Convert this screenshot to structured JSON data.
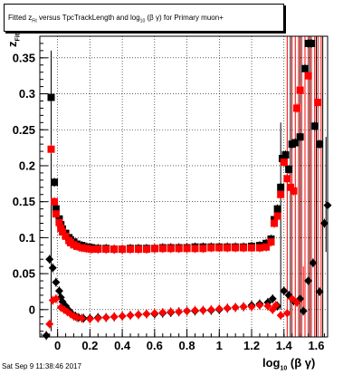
{
  "title": {
    "prefix": "Fitted",
    "z_main": "z",
    "z_sub": "Fit",
    "middle": "versus TpcTrackLength and log",
    "log_sub": "10",
    "suffix": "(β γ) for Primary muon+"
  },
  "ylabel": {
    "main": "z",
    "sub": "Fit"
  },
  "xlabel": {
    "main": "log",
    "sub": "10",
    "suffix": "(β γ)"
  },
  "datestamp": "Sat Sep  9 11:38:46 2017",
  "colors": {
    "black_series": "#000000",
    "red_series": "#ff0000"
  },
  "chart_data": {
    "type": "scatter",
    "xlim": [
      -0.11,
      1.67
    ],
    "ylim": [
      -0.038,
      0.38
    ],
    "x_ticks": [
      "0",
      "0.2",
      "0.4",
      "0.6",
      "0.8",
      "1",
      "1.2",
      "1.4",
      "1.6"
    ],
    "y_ticks": [
      "0",
      "0.05",
      "0.1",
      "0.15",
      "0.2",
      "0.25",
      "0.3",
      "0.35"
    ],
    "grid": true,
    "series": [
      {
        "marker": "square",
        "color": "#000000",
        "points": [
          [
            -0.04,
            0.295
          ],
          [
            -0.02,
            0.177
          ],
          [
            -0.01,
            0.14
          ],
          [
            0.01,
            0.126
          ],
          [
            0.02,
            0.118
          ],
          [
            0.03,
            0.112
          ],
          [
            0.05,
            0.106
          ],
          [
            0.07,
            0.1
          ],
          [
            0.08,
            0.097
          ],
          [
            0.1,
            0.094
          ],
          [
            0.12,
            0.091
          ],
          [
            0.15,
            0.089
          ],
          [
            0.18,
            0.087
          ],
          [
            0.21,
            0.086
          ],
          [
            0.25,
            0.085
          ],
          [
            0.3,
            0.085
          ],
          [
            0.35,
            0.084
          ],
          [
            0.4,
            0.084
          ],
          [
            0.45,
            0.085
          ],
          [
            0.5,
            0.085
          ],
          [
            0.55,
            0.085
          ],
          [
            0.6,
            0.085
          ],
          [
            0.65,
            0.086
          ],
          [
            0.7,
            0.086
          ],
          [
            0.75,
            0.086
          ],
          [
            0.8,
            0.086
          ],
          [
            0.85,
            0.087
          ],
          [
            0.9,
            0.087
          ],
          [
            0.95,
            0.087
          ],
          [
            1.0,
            0.087
          ],
          [
            1.05,
            0.087
          ],
          [
            1.1,
            0.087
          ],
          [
            1.15,
            0.087
          ],
          [
            1.2,
            0.088
          ],
          [
            1.25,
            0.089
          ],
          [
            1.29,
            0.092
          ],
          [
            1.32,
            0.098
          ],
          [
            1.34,
            0.125
          ],
          [
            1.36,
            0.14
          ],
          [
            1.38,
            0.17
          ],
          [
            1.39,
            0.21
          ],
          [
            1.41,
            0.215
          ],
          [
            1.43,
            0.195
          ],
          [
            1.45,
            0.23
          ],
          [
            1.47,
            0.232
          ],
          [
            1.5,
            0.24
          ],
          [
            1.53,
            0.335
          ],
          [
            1.55,
            0.37
          ],
          [
            1.57,
            0.37
          ],
          [
            1.59,
            0.255
          ],
          [
            1.62,
            0.23
          ]
        ]
      },
      {
        "marker": "square",
        "color": "#ff0000",
        "points": [
          [
            -0.04,
            0.223
          ],
          [
            -0.02,
            0.15
          ],
          [
            -0.01,
            0.133
          ],
          [
            0.01,
            0.121
          ],
          [
            0.02,
            0.113
          ],
          [
            0.03,
            0.108
          ],
          [
            0.05,
            0.102
          ],
          [
            0.07,
            0.096
          ],
          [
            0.08,
            0.093
          ],
          [
            0.1,
            0.09
          ],
          [
            0.12,
            0.088
          ],
          [
            0.15,
            0.086
          ],
          [
            0.18,
            0.085
          ],
          [
            0.21,
            0.084
          ],
          [
            0.25,
            0.084
          ],
          [
            0.3,
            0.084
          ],
          [
            0.35,
            0.084
          ],
          [
            0.4,
            0.084
          ],
          [
            0.45,
            0.084
          ],
          [
            0.5,
            0.084
          ],
          [
            0.55,
            0.084
          ],
          [
            0.6,
            0.085
          ],
          [
            0.65,
            0.085
          ],
          [
            0.7,
            0.085
          ],
          [
            0.75,
            0.085
          ],
          [
            0.8,
            0.085
          ],
          [
            0.85,
            0.085
          ],
          [
            0.9,
            0.085
          ],
          [
            0.95,
            0.086
          ],
          [
            1.0,
            0.086
          ],
          [
            1.05,
            0.086
          ],
          [
            1.1,
            0.086
          ],
          [
            1.15,
            0.086
          ],
          [
            1.2,
            0.086
          ],
          [
            1.25,
            0.086
          ],
          [
            1.29,
            0.087
          ],
          [
            1.32,
            0.094
          ],
          [
            1.34,
            0.12
          ],
          [
            1.36,
            0.13
          ],
          [
            1.38,
            0.16
          ],
          [
            1.4,
            0.205
          ],
          [
            1.42,
            0.182
          ],
          [
            1.44,
            0.17
          ],
          [
            1.46,
            0.165
          ],
          [
            1.48,
            0.28
          ],
          [
            1.5,
            0.305
          ],
          [
            1.55,
            0.325
          ],
          [
            1.61,
            0.288
          ]
        ]
      },
      {
        "marker": "diamond",
        "color": "#000000",
        "points": [
          [
            -0.07,
            -0.036
          ],
          [
            -0.05,
            0.07
          ],
          [
            -0.03,
            0.058
          ],
          [
            -0.01,
            0.038
          ],
          [
            0.01,
            0.026
          ],
          [
            0.02,
            0.017
          ],
          [
            0.03,
            0.011
          ],
          [
            0.05,
            0.005
          ],
          [
            0.07,
            -0.001
          ],
          [
            0.09,
            -0.006
          ],
          [
            0.11,
            -0.009
          ],
          [
            0.13,
            -0.011
          ],
          [
            0.16,
            -0.012
          ],
          [
            0.2,
            -0.012
          ],
          [
            0.25,
            -0.011
          ],
          [
            0.3,
            -0.011
          ],
          [
            0.35,
            -0.01
          ],
          [
            0.4,
            -0.009
          ],
          [
            0.45,
            -0.008
          ],
          [
            0.5,
            -0.007
          ],
          [
            0.55,
            -0.006
          ],
          [
            0.6,
            -0.006
          ],
          [
            0.65,
            -0.005
          ],
          [
            0.7,
            -0.004
          ],
          [
            0.75,
            -0.003
          ],
          [
            0.8,
            -0.002
          ],
          [
            0.85,
            -0.002
          ],
          [
            0.9,
            -0.001
          ],
          [
            0.95,
            -0.001
          ],
          [
            1.0,
            0.0
          ],
          [
            1.05,
            0.002
          ],
          [
            1.1,
            0.003
          ],
          [
            1.15,
            0.004
          ],
          [
            1.2,
            0.006
          ],
          [
            1.25,
            0.008
          ],
          [
            1.3,
            0.01
          ],
          [
            1.33,
            0.015
          ],
          [
            1.36,
            0.005
          ],
          [
            1.4,
            0.026
          ],
          [
            1.43,
            0.02
          ],
          [
            1.46,
            0.012
          ],
          [
            1.5,
            0.015
          ],
          [
            1.52,
            -0.002
          ],
          [
            1.55,
            0.04
          ],
          [
            1.58,
            0.065
          ],
          [
            1.62,
            0.025
          ],
          [
            1.65,
            0.12
          ],
          [
            1.67,
            0.145
          ]
        ]
      },
      {
        "marker": "diamond",
        "color": "#ff0000",
        "points": [
          [
            -0.05,
            -0.02
          ],
          [
            -0.03,
            0.013
          ],
          [
            -0.01,
            0.015
          ],
          [
            0.02,
            0.003
          ],
          [
            0.04,
            0.0
          ],
          [
            0.06,
            -0.003
          ],
          [
            0.08,
            -0.006
          ],
          [
            0.1,
            -0.009
          ],
          [
            0.12,
            -0.011
          ],
          [
            0.15,
            -0.012
          ],
          [
            0.2,
            -0.013
          ],
          [
            0.25,
            -0.012
          ],
          [
            0.3,
            -0.011
          ],
          [
            0.35,
            -0.01
          ],
          [
            0.4,
            -0.009
          ],
          [
            0.45,
            -0.008
          ],
          [
            0.5,
            -0.007
          ],
          [
            0.55,
            -0.006
          ],
          [
            0.6,
            -0.005
          ],
          [
            0.65,
            -0.004
          ],
          [
            0.7,
            -0.003
          ],
          [
            0.75,
            -0.003
          ],
          [
            0.8,
            -0.002
          ],
          [
            0.85,
            -0.001
          ],
          [
            0.9,
            -0.001
          ],
          [
            0.95,
            0.0
          ],
          [
            1.0,
            0.001
          ],
          [
            1.05,
            0.002
          ],
          [
            1.1,
            0.003
          ],
          [
            1.15,
            0.004
          ],
          [
            1.2,
            0.004
          ],
          [
            1.25,
            0.006
          ],
          [
            1.3,
            0.005
          ],
          [
            1.33,
            0.0
          ],
          [
            1.35,
            0.006
          ],
          [
            1.38,
            -0.008
          ],
          [
            1.42,
            -0.005
          ],
          [
            1.45,
            0.015
          ],
          [
            1.48,
            0.01
          ]
        ]
      }
    ],
    "vertical_error_bars": [
      {
        "x": -0.04,
        "y0": -0.03,
        "y1": 0.36,
        "color": "#000000"
      },
      {
        "x": 1.38,
        "y0": 0.0,
        "y1": 0.26,
        "color": "#000000"
      },
      {
        "x": 1.42,
        "y0": -0.038,
        "y1": 0.38,
        "color": "#ff0000"
      },
      {
        "x": 1.45,
        "y0": -0.038,
        "y1": 0.38,
        "color": "#ff0000"
      },
      {
        "x": 1.47,
        "y0": -0.038,
        "y1": 0.38,
        "color": "#ff0000"
      },
      {
        "x": 1.49,
        "y0": -0.038,
        "y1": 0.38,
        "color": "#ff0000"
      },
      {
        "x": 1.51,
        "y0": -0.038,
        "y1": 0.38,
        "color": "#ff0000"
      },
      {
        "x": 1.53,
        "y0": -0.038,
        "y1": 0.38,
        "color": "#ff0000"
      },
      {
        "x": 1.55,
        "y0": -0.038,
        "y1": 0.38,
        "color": "#ff0000"
      },
      {
        "x": 1.57,
        "y0": -0.038,
        "y1": 0.38,
        "color": "#ff0000"
      },
      {
        "x": 1.59,
        "y0": -0.038,
        "y1": 0.38,
        "color": "#ff0000"
      },
      {
        "x": 1.61,
        "y0": -0.038,
        "y1": 0.38,
        "color": "#ff0000"
      },
      {
        "x": 1.63,
        "y0": -0.038,
        "y1": 0.38,
        "color": "#ff0000"
      },
      {
        "x": 1.44,
        "y0": -0.038,
        "y1": 0.38,
        "color": "#000000"
      },
      {
        "x": 1.5,
        "y0": -0.038,
        "y1": 0.38,
        "color": "#000000"
      },
      {
        "x": 1.56,
        "y0": -0.038,
        "y1": 0.38,
        "color": "#000000"
      },
      {
        "x": 1.6,
        "y0": -0.038,
        "y1": 0.38,
        "color": "#000000"
      },
      {
        "x": 1.64,
        "y0": -0.038,
        "y1": 0.38,
        "color": "#000000"
      },
      {
        "x": 1.52,
        "y0": 0.0,
        "y1": 0.06,
        "color": "#ff0000"
      },
      {
        "x": 1.66,
        "y0": 0.08,
        "y1": 0.24,
        "color": "#000000"
      }
    ]
  }
}
